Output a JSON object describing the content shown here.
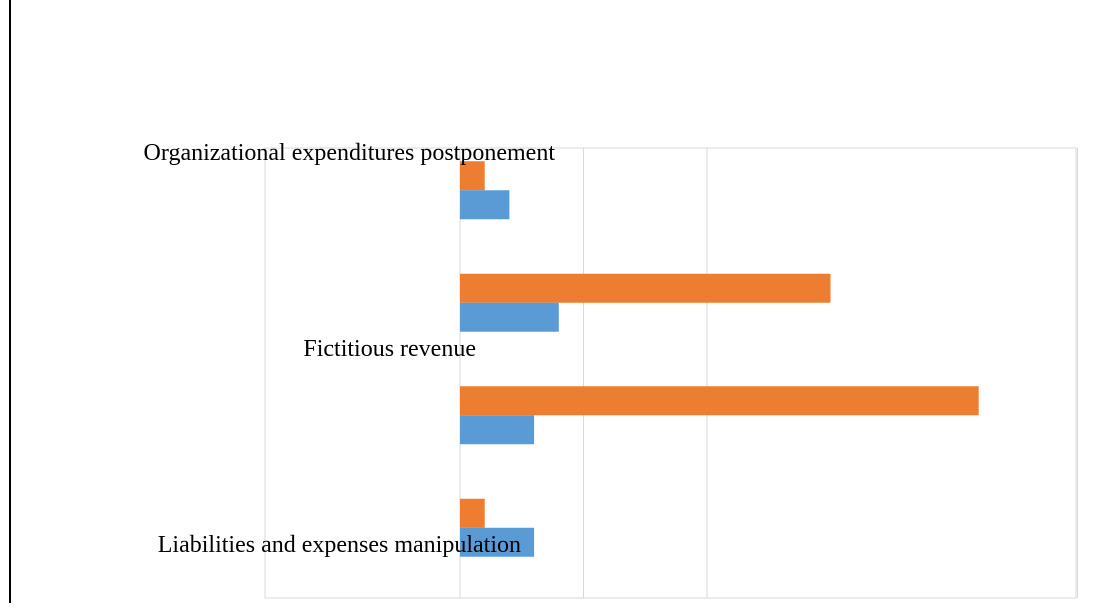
{
  "chart_data": {
    "type": "bar",
    "orientation": "horizontal",
    "title": "",
    "xlabel": "",
    "ylabel": "",
    "xlim": [
      0,
      5
    ],
    "grid": true,
    "legend": "none",
    "categories": [
      "Liabilities and expenses manipulation",
      "",
      "Fictitious revenue",
      "Organizational expenditures postponement"
    ],
    "series": [
      {
        "color": "#5B9BD5",
        "values": [
          0.3,
          0.3,
          0.4,
          0.2
        ]
      },
      {
        "color": "#ED7D31",
        "values": [
          0.1,
          2.1,
          1.5,
          0.1
        ]
      }
    ]
  }
}
